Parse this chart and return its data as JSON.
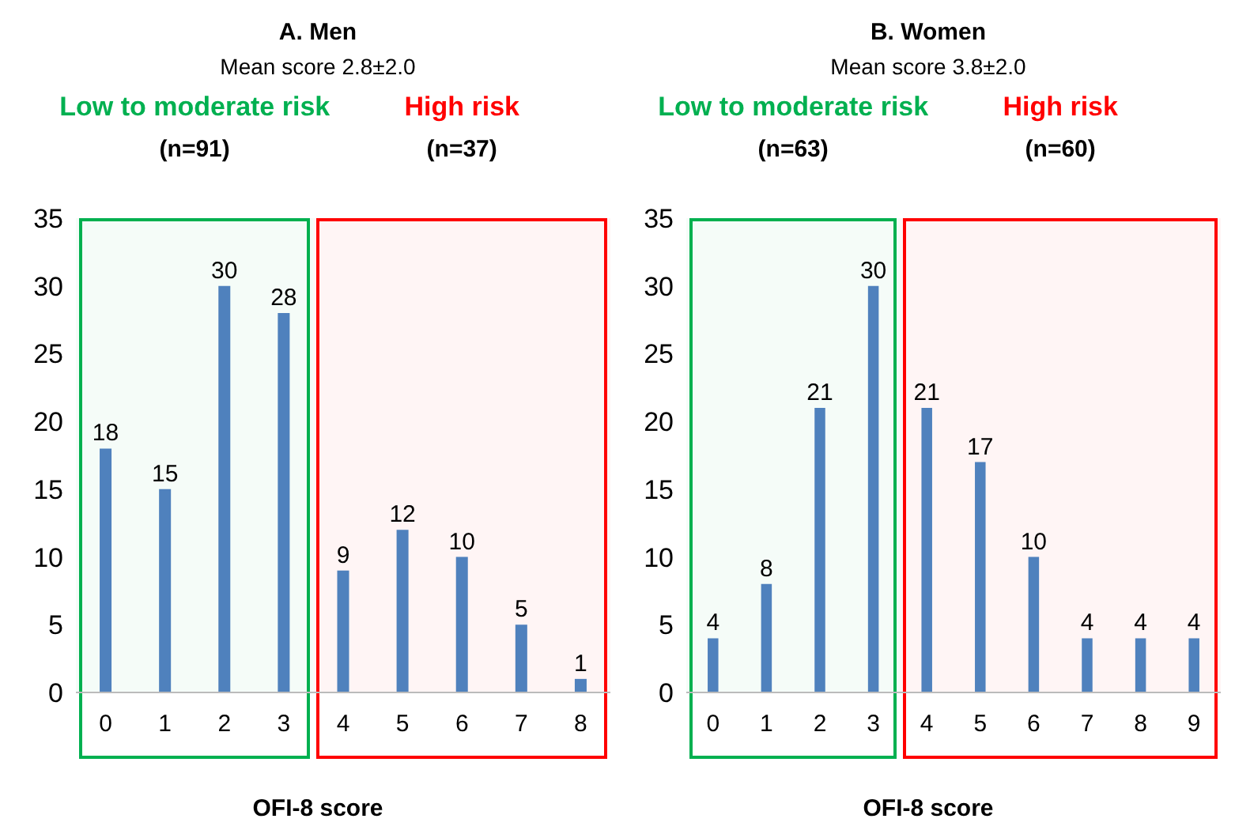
{
  "chart_data": [
    {
      "type": "bar",
      "title": "A. Men",
      "subtitle": "Mean score 2.8±2.0",
      "xlabel": "OFI-8 score",
      "categories": [
        "0",
        "1",
        "2",
        "3",
        "4",
        "5",
        "6",
        "7",
        "8"
      ],
      "values": [
        18,
        15,
        30,
        28,
        9,
        12,
        10,
        5,
        1
      ],
      "color": "#4f81bd",
      "ylim": [
        0,
        35
      ],
      "yticks": [
        0,
        5,
        10,
        15,
        20,
        25,
        30,
        35
      ],
      "grid": false,
      "data_labels": true,
      "bands": [
        {
          "axis": "x",
          "from": "0",
          "to": "3",
          "label": "Low to moderate risk",
          "color": "#00b050"
        },
        {
          "axis": "x",
          "from": "4",
          "to": "8",
          "label": "High risk",
          "color": "#ff0000"
        }
      ],
      "annotations": [
        "(n=91)",
        "(n=37)"
      ]
    },
    {
      "type": "bar",
      "title": "B. Women",
      "subtitle": "Mean score 3.8±2.0",
      "xlabel": "OFI-8 score",
      "categories": [
        "0",
        "1",
        "2",
        "3",
        "4",
        "5",
        "6",
        "7",
        "8",
        "9"
      ],
      "values": [
        4,
        8,
        21,
        30,
        21,
        17,
        10,
        4,
        4,
        4
      ],
      "color": "#4f81bd",
      "ylim": [
        0,
        35
      ],
      "yticks": [
        0,
        5,
        10,
        15,
        20,
        25,
        30,
        35
      ],
      "grid": false,
      "data_labels": true,
      "bands": [
        {
          "axis": "x",
          "from": "0",
          "to": "3",
          "label": "Low to moderate risk",
          "color": "#00b050"
        },
        {
          "axis": "x",
          "from": "4",
          "to": "9",
          "label": "High risk",
          "color": "#ff0000"
        }
      ],
      "annotations": [
        "(n=63)",
        "(n=60)"
      ]
    }
  ]
}
